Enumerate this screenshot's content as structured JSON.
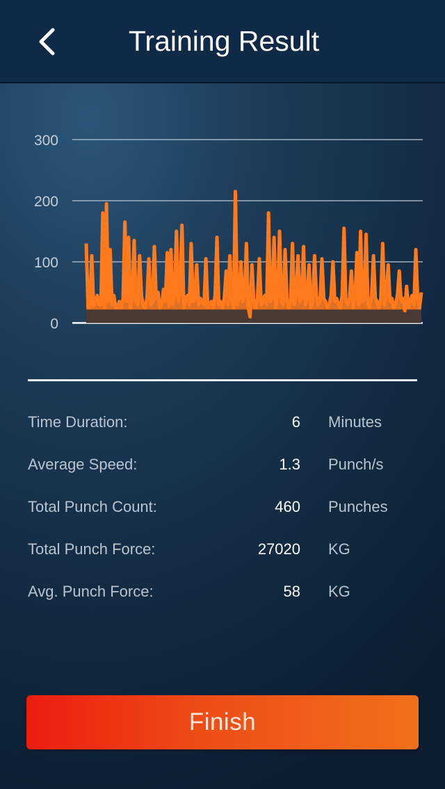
{
  "header": {
    "title": "Training Result",
    "back_icon": "chevron-left-icon"
  },
  "chart_data": {
    "type": "area",
    "title": "",
    "xlabel": "",
    "ylabel": "",
    "ylim": [
      0,
      300
    ],
    "yticks": [
      "0",
      "100",
      "200",
      "300"
    ],
    "grid": true,
    "series": [
      {
        "color": "#ff7a1c",
        "values": [
          130,
          28,
          25,
          110,
          28,
          35,
          45,
          30,
          30,
          180,
          25,
          195,
          35,
          120,
          30,
          45,
          25,
          25,
          35,
          25,
          40,
          165,
          35,
          140,
          25,
          40,
          135,
          35,
          30,
          110,
          45,
          28,
          25,
          40,
          105,
          30,
          35,
          125,
          40,
          50,
          25,
          30,
          55,
          35,
          115,
          28,
          120,
          30,
          45,
          150,
          35,
          50,
          160,
          25,
          40,
          45,
          30,
          130,
          35,
          40,
          95,
          30,
          40,
          35,
          30,
          105,
          25,
          30,
          35,
          25,
          45,
          140,
          30,
          35,
          25,
          40,
          85,
          30,
          110,
          40,
          25,
          215,
          30,
          40,
          100,
          35,
          45,
          130,
          25,
          10,
          95,
          35,
          25,
          40,
          105,
          30,
          35,
          45,
          30,
          180,
          35,
          40,
          140,
          25,
          45,
          150,
          35,
          30,
          120,
          40,
          25,
          35,
          130,
          30,
          45,
          110,
          35,
          40,
          125,
          30,
          40,
          95,
          25,
          35,
          110,
          45,
          30,
          35,
          105,
          40,
          35,
          25,
          30,
          45,
          100,
          35,
          40,
          30,
          25,
          45,
          155,
          35,
          30,
          40,
          85,
          25,
          40,
          115,
          30,
          150,
          35,
          40,
          145,
          30,
          25,
          45,
          110,
          40,
          35,
          25,
          40,
          130,
          30,
          45,
          95,
          35,
          40,
          25,
          30,
          45,
          85,
          35,
          40,
          20,
          60,
          25,
          35,
          45,
          30,
          120,
          40,
          25,
          50
        ]
      }
    ]
  },
  "stats": [
    {
      "label": "Time Duration:",
      "value": "6",
      "unit": "Minutes"
    },
    {
      "label": "Average Speed:",
      "value": "1.3",
      "unit": "Punch/s"
    },
    {
      "label": "Total Punch Count:",
      "value": "460",
      "unit": "Punches"
    },
    {
      "label": "Total Punch Force:",
      "value": "27020",
      "unit": "KG"
    },
    {
      "label": "Avg. Punch Force:",
      "value": "58",
      "unit": "KG"
    }
  ],
  "finish_button": {
    "label": "Finish"
  },
  "colors": {
    "header_bg": "#0f2a47",
    "accent_orange": "#ff7a1c",
    "button_start": "#ec1d10",
    "button_end": "#f0701c"
  }
}
